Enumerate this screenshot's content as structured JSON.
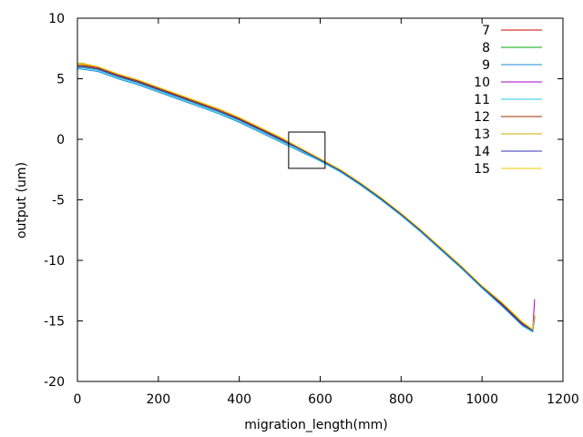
{
  "chart_data": {
    "type": "line",
    "title": "",
    "xlabel": "migration_length(mm)",
    "ylabel": "output (um)",
    "xlim": [
      0,
      1200
    ],
    "ylim": [
      -20,
      10
    ],
    "x_ticks": [
      "0",
      "200",
      "400",
      "600",
      "800",
      "1000",
      "1200"
    ],
    "y_ticks": [
      "10",
      "5",
      "0",
      "-5",
      "-10",
      "-15",
      "-20"
    ],
    "grid": false,
    "legend_position": "top-right",
    "annotation": {
      "type": "rectangle",
      "x_range": [
        522,
        612
      ],
      "y_range": [
        -2.4,
        0.6
      ]
    },
    "x": [
      0,
      10,
      50,
      100,
      150,
      200,
      250,
      300,
      350,
      400,
      450,
      500,
      550,
      600,
      650,
      700,
      750,
      800,
      850,
      900,
      950,
      1000,
      1050,
      1100,
      1125,
      1130
    ],
    "series": [
      {
        "name": "7",
        "color": "#cc0000",
        "values": [
          6.2,
          6.2,
          5.9,
          5.3,
          4.8,
          4.2,
          3.6,
          3.0,
          2.4,
          1.7,
          0.9,
          0.1,
          -0.8,
          -1.7,
          -2.6,
          -3.7,
          -4.9,
          -6.2,
          -7.6,
          -9.1,
          -10.6,
          -12.2,
          -13.6,
          -15.2,
          -15.8,
          -14.6
        ]
      },
      {
        "name": "8",
        "color": "#00aa00",
        "values": [
          6.0,
          6.0,
          5.8,
          5.2,
          4.7,
          4.1,
          3.5,
          2.9,
          2.3,
          1.6,
          0.8,
          0.0,
          -0.8,
          -1.7,
          -2.6,
          -3.7,
          -4.9,
          -6.2,
          -7.6,
          -9.1,
          -10.6,
          -12.2,
          -13.7,
          -15.3,
          -15.9,
          -14.7
        ]
      },
      {
        "name": "9",
        "color": "#1a8fd6",
        "values": [
          5.8,
          5.8,
          5.6,
          5.0,
          4.5,
          3.9,
          3.3,
          2.7,
          2.1,
          1.4,
          0.6,
          -0.2,
          -1.0,
          -1.8,
          -2.7,
          -3.8,
          -5.0,
          -6.3,
          -7.7,
          -9.2,
          -10.7,
          -12.3,
          -13.8,
          -15.4,
          -15.9,
          -14.8
        ]
      },
      {
        "name": "10",
        "color": "#aa00cc",
        "values": [
          6.1,
          6.1,
          5.9,
          5.3,
          4.8,
          4.2,
          3.6,
          3.0,
          2.4,
          1.7,
          0.9,
          0.1,
          -0.8,
          -1.7,
          -2.6,
          -3.7,
          -4.9,
          -6.2,
          -7.6,
          -9.1,
          -10.6,
          -12.2,
          -13.6,
          -15.2,
          -15.8,
          -13.2
        ]
      },
      {
        "name": "11",
        "color": "#22cce0",
        "values": [
          5.9,
          5.9,
          5.7,
          5.1,
          4.6,
          4.0,
          3.4,
          2.8,
          2.2,
          1.5,
          0.7,
          -0.1,
          -0.9,
          -1.8,
          -2.7,
          -3.8,
          -5.0,
          -6.3,
          -7.7,
          -9.2,
          -10.7,
          -12.3,
          -13.7,
          -15.3,
          -15.9,
          -14.7
        ]
      },
      {
        "name": "12",
        "color": "#993300",
        "values": [
          6.1,
          6.1,
          5.9,
          5.3,
          4.8,
          4.2,
          3.6,
          3.0,
          2.4,
          1.7,
          0.9,
          0.1,
          -0.8,
          -1.7,
          -2.6,
          -3.7,
          -4.9,
          -6.2,
          -7.6,
          -9.1,
          -10.6,
          -12.2,
          -13.6,
          -15.2,
          -15.8,
          -14.6
        ]
      },
      {
        "name": "13",
        "color": "#ccaa00",
        "values": [
          6.3,
          6.3,
          6.0,
          5.4,
          4.9,
          4.3,
          3.7,
          3.1,
          2.5,
          1.8,
          1.0,
          0.2,
          -0.7,
          -1.6,
          -2.5,
          -3.6,
          -4.8,
          -6.1,
          -7.5,
          -9.0,
          -10.5,
          -12.1,
          -13.5,
          -15.1,
          -15.7,
          -14.5
        ]
      },
      {
        "name": "14",
        "color": "#3333bb",
        "values": [
          6.0,
          6.0,
          5.8,
          5.2,
          4.7,
          4.1,
          3.5,
          2.9,
          2.3,
          1.6,
          0.8,
          0.0,
          -0.8,
          -1.7,
          -2.6,
          -3.7,
          -4.9,
          -6.2,
          -7.6,
          -9.1,
          -10.6,
          -12.2,
          -13.7,
          -15.3,
          -15.8,
          -14.6
        ]
      },
      {
        "name": "15",
        "color": "#f0c800",
        "values": [
          6.2,
          6.2,
          6.0,
          5.4,
          4.9,
          4.3,
          3.7,
          3.1,
          2.5,
          1.8,
          1.0,
          0.2,
          -0.7,
          -1.6,
          -2.5,
          -3.6,
          -4.8,
          -6.1,
          -7.5,
          -9.0,
          -10.5,
          -12.1,
          -13.5,
          -15.1,
          -15.7,
          -14.5
        ]
      }
    ]
  }
}
